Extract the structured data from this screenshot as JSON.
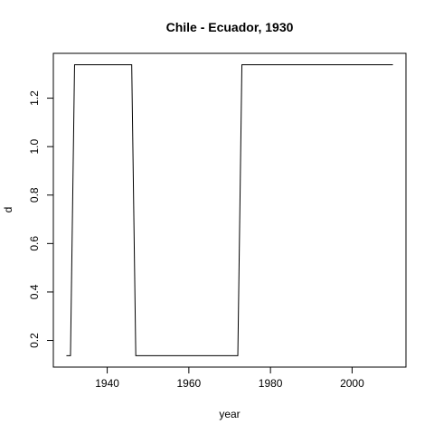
{
  "chart_data": {
    "type": "line",
    "title": "Chile - Ecuador, 1930",
    "xlabel": "year",
    "ylabel": "d",
    "xlim": [
      1926.8,
      2013.2
    ],
    "ylim": [
      0.09,
      1.385
    ],
    "x_ticks": [
      1940,
      1960,
      1980,
      2000
    ],
    "y_ticks": [
      0.2,
      0.4,
      0.6,
      0.8,
      1.0,
      1.2
    ],
    "y_tick_labels": [
      "0.2",
      "0.4",
      "0.6",
      "0.8",
      "1.0",
      "1.2"
    ],
    "grid": false,
    "legend": "none",
    "series": [
      {
        "x": [
          1930,
          1931,
          1932,
          1946,
          1947,
          1972,
          1973,
          2010
        ],
        "values": [
          0.137,
          0.137,
          1.338,
          1.338,
          0.137,
          0.137,
          1.338,
          1.338
        ]
      }
    ]
  }
}
